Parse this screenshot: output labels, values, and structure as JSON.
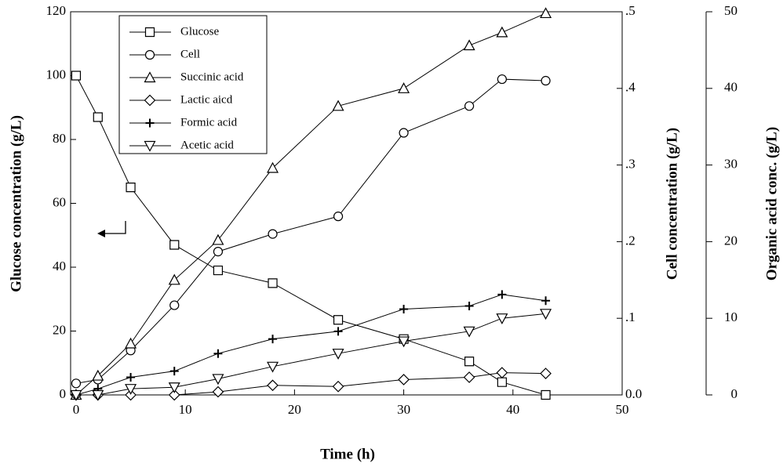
{
  "chart_data": {
    "type": "line",
    "x_label": "Time (h)",
    "y_label": "Glucose concentration (g/L)",
    "y2_label": "Cell concentration (g/L)",
    "y3_label": "Organic acid conc. (g/L)",
    "x": [
      0,
      2,
      5,
      9,
      13,
      18,
      24,
      30,
      36,
      39,
      43
    ],
    "xlim": [
      -0.5,
      50
    ],
    "xticks": [
      0,
      10,
      20,
      30,
      40,
      50
    ],
    "ylim": [
      0,
      120
    ],
    "yticks": [
      0,
      20,
      40,
      60,
      80,
      100,
      120
    ],
    "y2lim": [
      0,
      0.5
    ],
    "y2ticks": [
      {
        "value": 0,
        "label": "0.0"
      },
      {
        "value": 0.1,
        "label": ".1"
      },
      {
        "value": 0.2,
        "label": ".2"
      },
      {
        "value": 0.3,
        "label": ".3"
      },
      {
        "value": 0.4,
        "label": ".4"
      },
      {
        "value": 0.5,
        "label": ".5"
      }
    ],
    "y3lim": [
      0,
      50
    ],
    "y3ticks": [
      0,
      10,
      20,
      30,
      40,
      50
    ],
    "legend": "upper left",
    "series": [
      {
        "name": "Glucose",
        "color": "#000000",
        "marker": "square",
        "axis": "y",
        "values": [
          100,
          87,
          65,
          47,
          39,
          35,
          23.5,
          17.5,
          10.5,
          4,
          0
        ]
      },
      {
        "name": "Cell",
        "color": "#000000",
        "marker": "circle",
        "axis": "y2",
        "values": [
          0.015,
          0.02,
          0.058,
          0.117,
          0.187,
          0.21,
          0.233,
          0.342,
          0.377,
          0.412,
          0.41
        ]
      },
      {
        "name": "Succinic acid",
        "color": "#000000",
        "marker": "triangle-up",
        "axis": "y3",
        "values": [
          0,
          2.5,
          6.7,
          15,
          20.2,
          29.6,
          37.7,
          40,
          45.6,
          47.3,
          49.8
        ]
      },
      {
        "name": "Lactic aicd",
        "color": "#000000",
        "marker": "diamond",
        "axis": "y3",
        "values": [
          0,
          0,
          0,
          0,
          0.4,
          1.25,
          1.1,
          2,
          2.3,
          2.9,
          2.8
        ]
      },
      {
        "name": "Formic acid",
        "color": "#000000",
        "marker": "plus",
        "axis": "y3",
        "values": [
          0,
          0.8,
          2.3,
          3.1,
          5.4,
          7.3,
          8.3,
          11.2,
          11.6,
          13.1,
          12.3
        ]
      },
      {
        "name": "Acetic acid",
        "color": "#000000",
        "marker": "triangle-down",
        "axis": "y3",
        "values": [
          0,
          0,
          0.8,
          1,
          2.1,
          3.7,
          5.4,
          7,
          8.3,
          10,
          10.6
        ]
      }
    ]
  }
}
